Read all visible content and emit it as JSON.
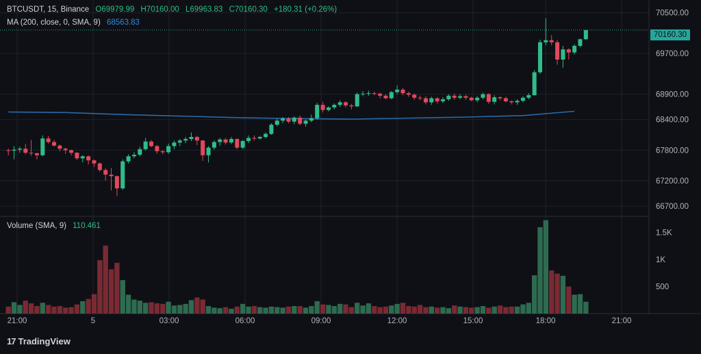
{
  "header": {
    "symbol": "BTCUSDT, 15, Binance",
    "open": "O69979.99",
    "high": "H70160.00",
    "low": "L69963.83",
    "close": "C70160.30",
    "change": "+180.31 (+0.26%)",
    "ma_label": "MA (200, close, 0, SMA, 9)",
    "ma_value": "68563.83",
    "volume_label": "Volume (SMA, 9)",
    "volume_value": "110.461"
  },
  "last_price_label": "70160.30",
  "brand": "TradingView",
  "colors": {
    "up": "#2fbd8a",
    "down": "#e2495b",
    "ma": "#2a8be2",
    "vol_up": "#2e6b50",
    "vol_down": "#7a2a33"
  },
  "chart_data": {
    "type": "candlestick",
    "price_ticks": [
      70500,
      69700,
      68900,
      68400,
      67800,
      67200,
      66700
    ],
    "price_range": [
      66500,
      70750
    ],
    "volume_ticks": [
      "1.5K",
      "1K",
      "500"
    ],
    "volume_range": [
      0,
      1750
    ],
    "x_ticks": [
      "21:00",
      "5",
      "03:00",
      "06:00",
      "09:00",
      "12:00",
      "15:00",
      "18:00",
      "21:00"
    ],
    "last_price": 70160.3,
    "grid": true,
    "candles": [
      [
        67800,
        67830,
        67700,
        67790
      ],
      [
        67790,
        67880,
        67620,
        67810
      ],
      [
        67810,
        67870,
        67750,
        67830
      ],
      [
        67830,
        67920,
        67720,
        67750
      ],
      [
        67750,
        68000,
        67690,
        67740
      ],
      [
        67740,
        67750,
        67620,
        67700
      ],
      [
        67700,
        68090,
        67680,
        68030
      ],
      [
        68030,
        68080,
        67930,
        67960
      ],
      [
        67960,
        68000,
        67870,
        67890
      ],
      [
        67890,
        67910,
        67780,
        67830
      ],
      [
        67830,
        67850,
        67730,
        67800
      ],
      [
        67800,
        67810,
        67700,
        67750
      ],
      [
        67750,
        67760,
        67610,
        67640
      ],
      [
        67640,
        67700,
        67560,
        67680
      ],
      [
        67680,
        67700,
        67520,
        67600
      ],
      [
        67600,
        67620,
        67470,
        67540
      ],
      [
        67540,
        67560,
        67380,
        67410
      ],
      [
        67410,
        67450,
        67200,
        67320
      ],
      [
        67320,
        67450,
        67010,
        67290
      ],
      [
        67290,
        67300,
        66900,
        67050
      ],
      [
        67050,
        67620,
        67020,
        67580
      ],
      [
        67580,
        67720,
        67540,
        67680
      ],
      [
        67680,
        67760,
        67640,
        67710
      ],
      [
        67710,
        67870,
        67680,
        67820
      ],
      [
        67820,
        68040,
        67790,
        67970
      ],
      [
        67970,
        68000,
        67860,
        67880
      ],
      [
        67880,
        67900,
        67730,
        67780
      ],
      [
        67780,
        67800,
        67720,
        67760
      ],
      [
        67760,
        67930,
        67730,
        67880
      ],
      [
        67880,
        67990,
        67820,
        67950
      ],
      [
        67950,
        68020,
        67880,
        67990
      ],
      [
        67990,
        68060,
        67940,
        68020
      ],
      [
        68020,
        68150,
        67980,
        68060
      ],
      [
        68060,
        68080,
        67900,
        67990
      ],
      [
        67990,
        68000,
        67590,
        67700
      ],
      [
        67700,
        67880,
        67560,
        67850
      ],
      [
        67850,
        67990,
        67810,
        67960
      ],
      [
        67960,
        68040,
        67890,
        68010
      ],
      [
        68010,
        68040,
        67910,
        67950
      ],
      [
        67950,
        68060,
        67920,
        68020
      ],
      [
        68020,
        68030,
        67820,
        67850
      ],
      [
        67850,
        68000,
        67820,
        67980
      ],
      [
        67980,
        68090,
        67940,
        68040
      ],
      [
        68040,
        68090,
        67990,
        68030
      ],
      [
        68030,
        68080,
        68010,
        68060
      ],
      [
        68060,
        68150,
        68030,
        68120
      ],
      [
        68120,
        68330,
        68100,
        68300
      ],
      [
        68300,
        68420,
        68270,
        68380
      ],
      [
        68380,
        68450,
        68330,
        68420
      ],
      [
        68420,
        68450,
        68330,
        68360
      ],
      [
        68360,
        68460,
        68310,
        68440
      ],
      [
        68440,
        68480,
        68290,
        68320
      ],
      [
        68320,
        68400,
        68260,
        68380
      ],
      [
        68380,
        68500,
        68350,
        68430
      ],
      [
        68430,
        68730,
        68400,
        68690
      ],
      [
        68690,
        68750,
        68540,
        68590
      ],
      [
        68590,
        68660,
        68560,
        68640
      ],
      [
        68640,
        68720,
        68600,
        68690
      ],
      [
        68690,
        68780,
        68650,
        68740
      ],
      [
        68740,
        68760,
        68640,
        68680
      ],
      [
        68680,
        68710,
        68600,
        68660
      ],
      [
        68660,
        68930,
        68650,
        68900
      ],
      [
        68900,
        68960,
        68860,
        68910
      ],
      [
        68910,
        68970,
        68870,
        68920
      ],
      [
        68920,
        68950,
        68880,
        68910
      ],
      [
        68910,
        68930,
        68820,
        68870
      ],
      [
        68870,
        68900,
        68800,
        68820
      ],
      [
        68820,
        68960,
        68800,
        68940
      ],
      [
        68940,
        69070,
        68900,
        68990
      ],
      [
        68990,
        69020,
        68880,
        68920
      ],
      [
        68920,
        68950,
        68850,
        68890
      ],
      [
        68890,
        68910,
        68790,
        68830
      ],
      [
        68830,
        68870,
        68780,
        68820
      ],
      [
        68820,
        68860,
        68700,
        68740
      ],
      [
        68740,
        68850,
        68690,
        68820
      ],
      [
        68820,
        68840,
        68720,
        68760
      ],
      [
        68760,
        68840,
        68730,
        68800
      ],
      [
        68800,
        68900,
        68770,
        68870
      ],
      [
        68870,
        68910,
        68790,
        68830
      ],
      [
        68830,
        68900,
        68800,
        68860
      ],
      [
        68860,
        68890,
        68790,
        68830
      ],
      [
        68830,
        68850,
        68760,
        68780
      ],
      [
        68780,
        68860,
        68740,
        68830
      ],
      [
        68830,
        68930,
        68800,
        68900
      ],
      [
        68900,
        68920,
        68710,
        68750
      ],
      [
        68750,
        68880,
        68700,
        68840
      ],
      [
        68840,
        68860,
        68780,
        68820
      ],
      [
        68820,
        68850,
        68740,
        68760
      ],
      [
        68760,
        68780,
        68700,
        68740
      ],
      [
        68740,
        68800,
        68690,
        68770
      ],
      [
        68770,
        68860,
        68740,
        68830
      ],
      [
        68830,
        68920,
        68800,
        68880
      ],
      [
        68880,
        69370,
        68870,
        69330
      ],
      [
        69330,
        69970,
        69300,
        69920
      ],
      [
        69920,
        70390,
        69860,
        69960
      ],
      [
        69960,
        70060,
        69860,
        69920
      ],
      [
        69920,
        69960,
        69480,
        69580
      ],
      [
        69580,
        69850,
        69420,
        69780
      ],
      [
        69780,
        69800,
        69580,
        69720
      ],
      [
        69720,
        69880,
        69680,
        69850
      ],
      [
        69850,
        69990,
        69820,
        69980
      ],
      [
        69980,
        70160,
        69963.83,
        70160.3
      ]
    ],
    "volumes": [
      130,
      210,
      160,
      240,
      190,
      140,
      200,
      160,
      130,
      140,
      110,
      120,
      170,
      230,
      270,
      360,
      990,
      1260,
      820,
      940,
      620,
      350,
      260,
      240,
      200,
      210,
      190,
      180,
      220,
      150,
      160,
      180,
      250,
      300,
      260,
      140,
      110,
      100,
      120,
      90,
      130,
      180,
      130,
      140,
      120,
      110,
      130,
      120,
      110,
      130,
      140,
      140,
      110,
      140,
      230,
      170,
      160,
      140,
      180,
      170,
      120,
      200,
      150,
      190,
      140,
      120,
      130,
      150,
      180,
      200,
      140,
      130,
      160,
      120,
      130,
      110,
      120,
      100,
      150,
      130,
      120,
      110,
      120,
      140,
      110,
      130,
      150,
      120,
      130,
      130,
      170,
      200,
      710,
      1600,
      1730,
      800,
      740,
      700,
      500,
      350,
      360,
      220
    ],
    "ma": [
      [
        0,
        68550
      ],
      [
        10,
        68540
      ],
      [
        20,
        68500
      ],
      [
        30,
        68470
      ],
      [
        40,
        68440
      ],
      [
        50,
        68420
      ],
      [
        60,
        68410
      ],
      [
        70,
        68430
      ],
      [
        80,
        68450
      ],
      [
        90,
        68480
      ],
      [
        99,
        68563.83
      ]
    ]
  }
}
